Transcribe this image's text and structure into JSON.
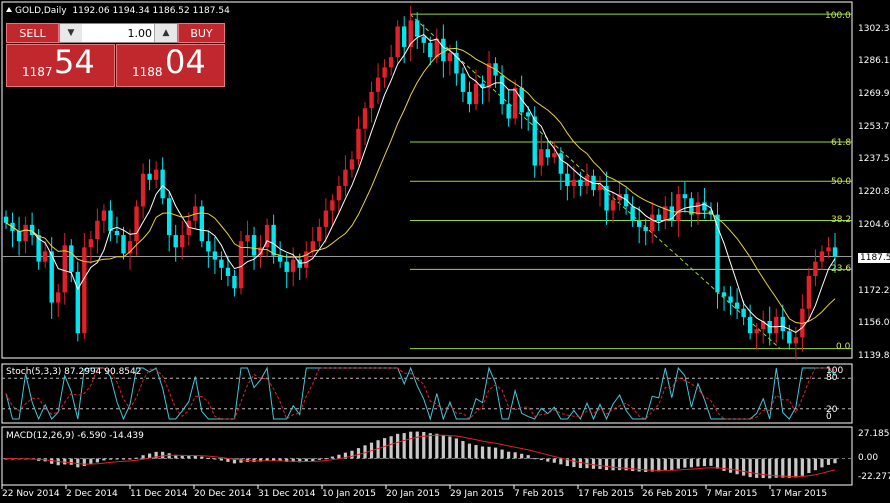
{
  "header": {
    "symbol_icon": "triangle-up-icon",
    "symbol": "GOLD,Daily",
    "ohlc": "1192.06 1194.34 1186.52 1187.54"
  },
  "trade_panel": {
    "sell_label": "SELL",
    "buy_label": "BUY",
    "lot_value": "1.00",
    "lot_down_icon": "arrow-down-icon",
    "lot_up_icon": "arrow-up-icon",
    "sell_prefix": "1187",
    "sell_pips": "54",
    "buy_prefix": "1188",
    "buy_pips": "04"
  },
  "price_axis": [
    "1302.30",
    "1286.10",
    "1269.90",
    "1253.70",
    "1237.50",
    "1220.85",
    "1204.65",
    "1172.25",
    "1156.05",
    "1139.85"
  ],
  "current_price": "1187.54",
  "fibonacci": [
    {
      "label": "100.0",
      "price": 1306.0
    },
    {
      "label": "61.8",
      "price": 1243.5
    },
    {
      "label": "50.0",
      "price": 1224.3
    },
    {
      "label": "38.2",
      "price": 1205.1
    },
    {
      "label": "23.6",
      "price": 1181.2
    },
    {
      "label": "0.0",
      "price": 1142.5
    }
  ],
  "stoch": {
    "title": "Stoch(5,3,3) 87.2994 90.8542",
    "levels": [
      "100",
      "80",
      "20",
      "0"
    ]
  },
  "macd": {
    "title": "MACD(12,26,9) -6.590 -14.439",
    "levels": [
      "27.185",
      "0.00",
      "-22.277"
    ]
  },
  "date_axis": [
    "22 Nov 2014",
    "2 Dec 2014",
    "11 Dec 2014",
    "20 Dec 2014",
    "31 Dec 2014",
    "10 Jan 2015",
    "20 Jan 2015",
    "29 Jan 2015",
    "7 Feb 2015",
    "17 Feb 2015",
    "26 Feb 2015",
    "7 Mar 2015",
    "17 Mar 2015"
  ],
  "colors": {
    "bull": "#e0202a",
    "bear": "#00e5ee",
    "ma_fast": "#ffffff",
    "ma_slow": "#e6d23c",
    "fib": "#9ad83a",
    "stoch_main": "#40c8d8",
    "stoch_signal": "#e0202a",
    "macd_hist": "#c8c8c8",
    "macd_signal": "#e0202a",
    "button": "#c1282d"
  },
  "chart_data": {
    "type": "candlestick",
    "symbol": "GOLD",
    "timeframe": "Daily",
    "ylim": [
      1139.85,
      1310.0
    ],
    "closes": [
      1204,
      1200,
      1195,
      1203,
      1198,
      1185,
      1190,
      1165,
      1170,
      1193,
      1180,
      1150,
      1192,
      1196,
      1205,
      1210,
      1200,
      1198,
      1189,
      1195,
      1212,
      1228,
      1225,
      1230,
      1216,
      1198,
      1192,
      1198,
      1205,
      1212,
      1195,
      1190,
      1186,
      1182,
      1178,
      1172,
      1195,
      1198,
      1188,
      1192,
      1203,
      1188,
      1185,
      1180,
      1186,
      1182,
      1190,
      1195,
      1202,
      1210,
      1215,
      1222,
      1230,
      1235,
      1250,
      1260,
      1268,
      1275,
      1280,
      1285,
      1300,
      1290,
      1303,
      1295,
      1292,
      1285,
      1294,
      1283,
      1287,
      1277,
      1268,
      1262,
      1272,
      1270,
      1282,
      1276,
      1262,
      1255,
      1270,
      1258,
      1256,
      1232,
      1240,
      1236,
      1238,
      1228,
      1222,
      1225,
      1222,
      1227,
      1220,
      1222,
      1210,
      1215,
      1218,
      1212,
      1205,
      1202,
      1200,
      1208,
      1205,
      1212,
      1205,
      1218,
      1216,
      1208,
      1214,
      1210,
      1208,
      1170,
      1168,
      1165,
      1162,
      1158,
      1150,
      1152,
      1156,
      1150,
      1158,
      1151,
      1145,
      1148,
      1162,
      1178,
      1185,
      1190,
      1192,
      1187.54
    ]
  }
}
